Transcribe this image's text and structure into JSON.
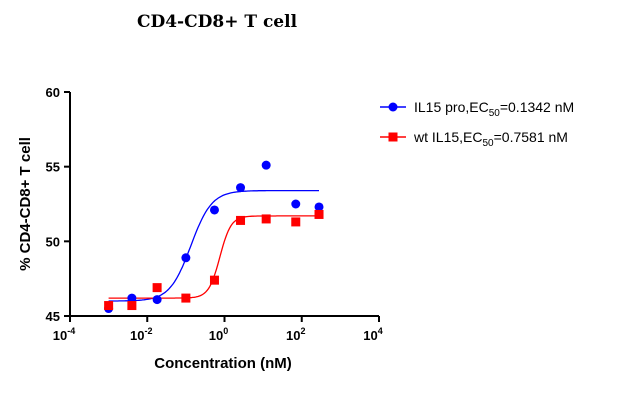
{
  "chart_data": {
    "type": "scatter",
    "title": "CD4-CD8+ T cell",
    "xlabel": "Concentration (nM)",
    "ylabel": "% CD4-CD8+ T cell",
    "xscale": "log",
    "xlim": [
      0.0001,
      10000
    ],
    "ylim": [
      45,
      60
    ],
    "x_ticks": [
      {
        "value": 0.0001,
        "base": "10",
        "exp": "-4"
      },
      {
        "value": 0.01,
        "base": "10",
        "exp": "-2"
      },
      {
        "value": 1,
        "base": "10",
        "exp": "0"
      },
      {
        "value": 100,
        "base": "10",
        "exp": "2"
      },
      {
        "value": 10000,
        "base": "10",
        "exp": "4"
      }
    ],
    "y_ticks": [
      45,
      50,
      55,
      60
    ],
    "grid": false,
    "legend_position": "top-right",
    "series": [
      {
        "legend_main": "IL15 pro,EC",
        "legend_sub": "50",
        "legend_tail": "=0.1342 nM",
        "color": "#0000ff",
        "marker": "circle",
        "x": [
          0.001,
          0.004,
          0.018,
          0.1,
          0.55,
          2.6,
          12,
          70,
          280
        ],
        "y": [
          45.5,
          46.2,
          46.1,
          48.9,
          52.1,
          53.6,
          55.1,
          52.5,
          52.3
        ],
        "fit": {
          "bottom": 46.0,
          "top": 53.4,
          "ec50": 0.1342,
          "hill": 1.6
        }
      },
      {
        "legend_main": "wt IL15,EC",
        "legend_sub": "50",
        "legend_tail": "=0.7581 nM",
        "color": "#ff0000",
        "marker": "square",
        "x": [
          0.001,
          0.004,
          0.018,
          0.1,
          0.55,
          2.6,
          12,
          70,
          280
        ],
        "y": [
          45.7,
          45.7,
          46.9,
          46.2,
          47.4,
          51.4,
          51.5,
          51.3,
          51.8
        ],
        "fit": {
          "bottom": 46.2,
          "top": 51.7,
          "ec50": 0.7581,
          "hill": 3.0
        }
      }
    ]
  }
}
